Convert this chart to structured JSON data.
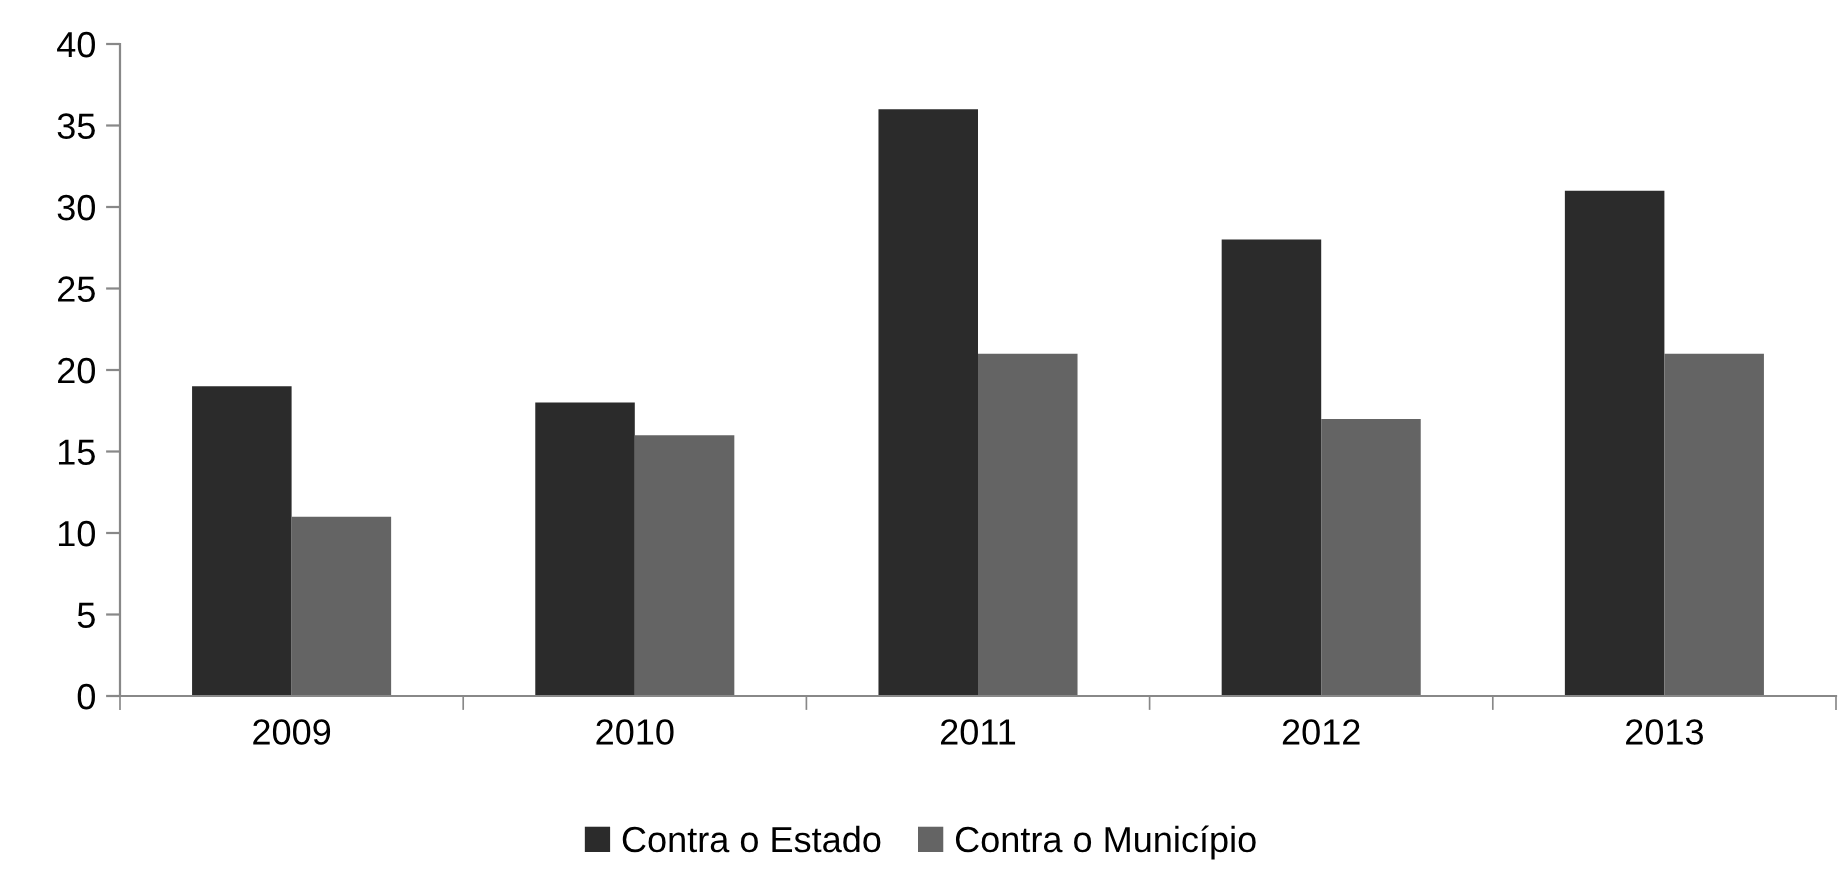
{
  "chart_data": {
    "type": "bar",
    "categories": [
      "2009",
      "2010",
      "2011",
      "2012",
      "2013"
    ],
    "series": [
      {
        "name": "Contra o Estado",
        "color": "#2b2b2b",
        "values": [
          19,
          18,
          36,
          28,
          31
        ]
      },
      {
        "name": "Contra o Município",
        "color": "#646464",
        "values": [
          11,
          16,
          21,
          17,
          21
        ]
      }
    ],
    "ylim": [
      0,
      40
    ],
    "yticks": [
      0,
      5,
      10,
      15,
      20,
      25,
      30,
      35,
      40
    ],
    "grid": false,
    "legend": "bottom"
  }
}
